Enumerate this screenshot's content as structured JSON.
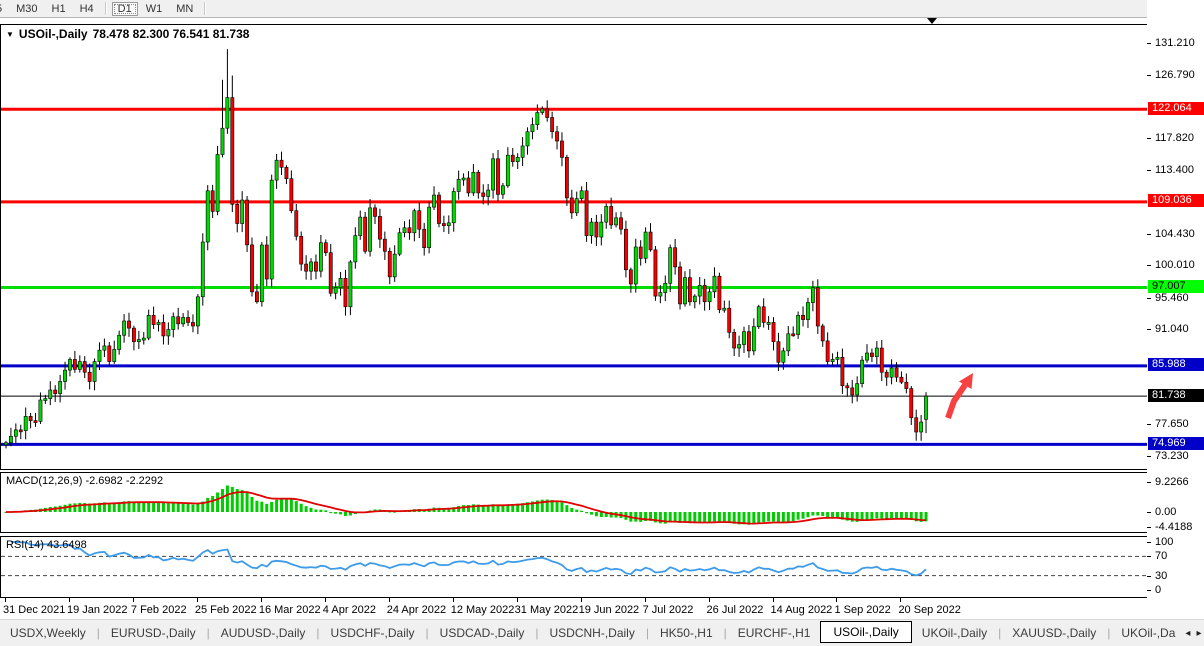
{
  "toolbar": {
    "timeframes": [
      {
        "label": "5",
        "active": false,
        "partial": true
      },
      {
        "label": "M30",
        "active": false
      },
      {
        "label": "H1",
        "active": false
      },
      {
        "label": "H4",
        "active": false
      },
      {
        "label": "D1",
        "active": true
      },
      {
        "label": "W1",
        "active": false
      },
      {
        "label": "MN",
        "active": false
      }
    ]
  },
  "main": {
    "title_symbol": "USOil-,Daily",
    "title_ohlc": "78.478 82.300 76.541 81.738"
  },
  "macd": {
    "title": "MACD(12,26,9) -2.6982 -2.2292",
    "axis_labels": [
      "9.2266",
      "0.00",
      "-4.4188"
    ],
    "axis_values": [
      9.2266,
      0.0,
      -4.4188
    ]
  },
  "rsi": {
    "title": "RSI(14) 43.6498",
    "levels": [
      100,
      70,
      30,
      0
    ],
    "dashed_levels": [
      70,
      30
    ]
  },
  "chart_data": {
    "type": "candlestick",
    "symbol": "USOil-",
    "timeframe": "Daily",
    "title": "USOil-,Daily 78.478 82.300 76.541 81.738",
    "current_bar": {
      "open": 78.478,
      "high": 82.3,
      "low": 76.541,
      "close": 81.738
    },
    "y_range": [
      71.5,
      133.9
    ],
    "x_tick_labels": [
      "31 Dec 2021",
      "19 Jan 2022",
      "7 Feb 2022",
      "25 Feb 2022",
      "16 Mar 2022",
      "4 Apr 2022",
      "24 Apr 2022",
      "12 May 2022",
      "31 May 2022",
      "19 Jun 2022",
      "7 Jul 2022",
      "26 Jul 2022",
      "14 Aug 2022",
      "1 Sep 2022",
      "20 Sep 2022"
    ],
    "x_tick_indices": [
      0,
      13,
      26,
      39,
      52,
      65,
      78,
      91,
      104,
      117,
      130,
      143,
      156,
      169,
      182
    ],
    "price_axis_ticks": [
      131.21,
      126.79,
      117.82,
      113.4,
      104.43,
      100.01,
      95.46,
      91.04,
      77.65,
      73.23
    ],
    "price_axis_tick_labels": [
      "131.210",
      "126.790",
      "117.820",
      "113.400",
      "104.430",
      "100.010",
      "95.460",
      "91.040",
      "77.650",
      "73.230"
    ],
    "horizontal_lines": [
      {
        "price": 122.064,
        "label": "122.064",
        "color": "#ff0000",
        "tag_bg": "#ff0000",
        "tag_fg": "#ffffff",
        "width": 3
      },
      {
        "price": 109.036,
        "label": "109.036",
        "color": "#ff0000",
        "tag_bg": "#ff0000",
        "tag_fg": "#ffffff",
        "width": 3
      },
      {
        "price": 97.007,
        "label": "97.007",
        "color": "#00dd00",
        "tag_bg": "#00ff00",
        "tag_fg": "#000000",
        "width": 3
      },
      {
        "price": 85.988,
        "label": "85.988",
        "color": "#0000c8",
        "tag_bg": "#0000c8",
        "tag_fg": "#ffffff",
        "width": 3
      },
      {
        "price": 81.738,
        "label": "81.738",
        "color": "#000000",
        "tag_bg": "#000000",
        "tag_fg": "#ffffff",
        "width": 1
      },
      {
        "price": 74.969,
        "label": "74.969",
        "color": "#0000c8",
        "tag_bg": "#0000c8",
        "tag_fg": "#ffffff",
        "width": 3
      }
    ],
    "closes": [
      75.2,
      76.1,
      77.0,
      76.9,
      78.9,
      78.3,
      78.2,
      81.2,
      81.4,
      82.6,
      82.1,
      83.8,
      85.4,
      86.9,
      85.5,
      86.6,
      85.1,
      83.8,
      86.6,
      88.2,
      88.8,
      86.6,
      88.3,
      90.3,
      92.3,
      91.3,
      89.4,
      89.7,
      89.9,
      93.1,
      91.8,
      92.1,
      90.2,
      91.1,
      92.9,
      91.9,
      92.8,
      92.1,
      91.6,
      95.7,
      103.4,
      110.6,
      107.7,
      115.7,
      119.4,
      123.7,
      108.7,
      106.0,
      109.3,
      103.0,
      96.4,
      95.0,
      102.98,
      98.2,
      112.1,
      114.9,
      113.9,
      112.3,
      107.8,
      104.2,
      100.3,
      99.3,
      100.6,
      99.3,
      103.3,
      101.9,
      96.2,
      97.0,
      98.3,
      94.3,
      100.6,
      104.3,
      106.9,
      102.1,
      108.2,
      107.0,
      103.8,
      102.1,
      98.5,
      101.7,
      104.7,
      105.4,
      104.7,
      107.8,
      105.2,
      102.6,
      108.3,
      110.0,
      106.0,
      105.7,
      106.1,
      110.5,
      112.2,
      112.4,
      110.3,
      113.2,
      110.3,
      109.8,
      110.7,
      115.1,
      110.1,
      111.3,
      115.6,
      114.7,
      115.3,
      116.9,
      118.9,
      119.9,
      121.6,
      122.1,
      120.9,
      118.9,
      117.6,
      115.3,
      109.6,
      107.5,
      109.5,
      110.6,
      104.3,
      106.2,
      104.1,
      106.2,
      108.4,
      105.8,
      106.8,
      105.2,
      99.5,
      97.5,
      102.7,
      101.1,
      104.8,
      102.3,
      95.8,
      96.3,
      97.6,
      102.6,
      99.9,
      94.7,
      98.4,
      95.0,
      95.8,
      97.3,
      95.0,
      96.4,
      98.6,
      93.9,
      94.1,
      90.7,
      88.5,
      89.0,
      90.8,
      88.1,
      91.5,
      94.3,
      92.1,
      92.1,
      89.4,
      86.5,
      88.1,
      90.5,
      90.4,
      93.1,
      92.5,
      94.9,
      97.0,
      91.6,
      89.5,
      86.6,
      86.9,
      87.2,
      83.2,
      82.9,
      81.9,
      83.5,
      86.8,
      87.8,
      87.3,
      88.5,
      85.1,
      84.4,
      85.7,
      84.4,
      83.7,
      82.8,
      78.7,
      76.7,
      78.1,
      81.738
    ],
    "wick_overrides": {
      "high": {
        "44": 126.2,
        "45": 130.5,
        "46": 126.8
      },
      "low": {
        "0": 74.4,
        "1": 74.7
      }
    },
    "colors": {
      "up": "#00d800",
      "down": "#f20000",
      "outline": "#000000",
      "macd_hist": "#00cc00",
      "macd_signal": "#e00000",
      "rsi_line": "#3d9be9",
      "arrow": "#f84040"
    },
    "annotation": {
      "type": "up-right-arrow",
      "color": "#f84040"
    },
    "indicators": [
      {
        "name": "MACD",
        "params": [
          12,
          26,
          9
        ],
        "values": [
          -2.6982,
          -2.2292
        ],
        "axis": [
          9.2266,
          0.0,
          -4.4188
        ]
      },
      {
        "name": "RSI",
        "params": [
          14
        ],
        "value": 43.6498,
        "levels": [
          100,
          70,
          30,
          0
        ]
      }
    ]
  },
  "tabs": {
    "items": [
      {
        "label": "USDX,Weekly",
        "active": false
      },
      {
        "label": "EURUSD-,Daily",
        "active": false
      },
      {
        "label": "AUDUSD-,Daily",
        "active": false
      },
      {
        "label": "USDCHF-,Daily",
        "active": false
      },
      {
        "label": "USDCAD-,Daily",
        "active": false
      },
      {
        "label": "USDCNH-,Daily",
        "active": false
      },
      {
        "label": "HK50-,H1",
        "active": false
      },
      {
        "label": "EURCHF-,H1",
        "active": false
      },
      {
        "label": "USOil-,Daily",
        "active": true
      },
      {
        "label": "UKOil-,Daily",
        "active": false
      },
      {
        "label": "XAUUSD-,Daily",
        "active": false
      },
      {
        "label": "UKOil-,Da",
        "active": false,
        "partial": true
      }
    ],
    "scroll_left": "◂",
    "scroll_right": "▸"
  }
}
